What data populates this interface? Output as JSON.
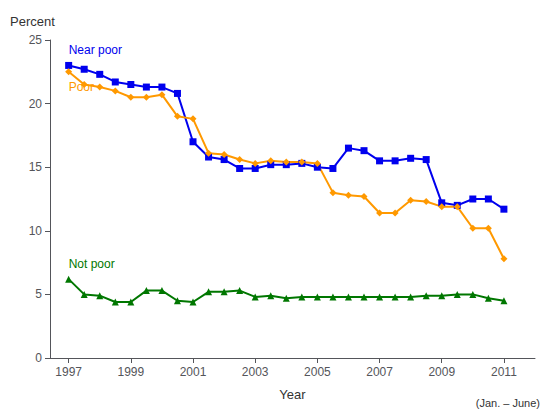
{
  "chart_data": {
    "type": "line",
    "xlabel": "Year",
    "ylabel": "Percent",
    "annotations": [
      "(Jan. – June)"
    ],
    "x": [
      1997,
      1997.5,
      1998,
      1998.5,
      1999,
      1999.5,
      2000,
      2000.5,
      2001,
      2001.5,
      2002,
      2002.5,
      2003,
      2003.5,
      2004,
      2004.5,
      2005,
      2005.5,
      2006,
      2006.5,
      2007,
      2007.5,
      2008,
      2008.5,
      2009,
      2009.5,
      2010,
      2010.5,
      2011
    ],
    "series": [
      {
        "name": "Near poor",
        "color": "#0000ee",
        "marker": "square",
        "values": [
          23.0,
          22.7,
          22.3,
          21.7,
          21.5,
          21.3,
          21.3,
          20.8,
          17.0,
          15.8,
          15.6,
          14.9,
          14.9,
          15.2,
          15.2,
          15.3,
          15.0,
          14.9,
          16.5,
          16.3,
          15.5,
          15.5,
          15.7,
          15.6,
          12.2,
          12.0,
          12.5,
          12.5,
          11.7
        ]
      },
      {
        "name": "Poor",
        "color": "#ff9900",
        "marker": "diamond",
        "values": [
          22.5,
          21.5,
          21.3,
          21.0,
          20.5,
          20.5,
          20.7,
          19.0,
          18.8,
          16.1,
          16.0,
          15.6,
          15.3,
          15.5,
          15.4,
          15.4,
          15.3,
          13.0,
          12.8,
          12.7,
          11.4,
          11.4,
          12.4,
          12.3,
          11.9,
          11.9,
          10.2,
          10.2,
          7.8
        ]
      },
      {
        "name": "Not poor",
        "color": "#007700",
        "marker": "triangle",
        "values": [
          6.2,
          5.0,
          4.9,
          4.4,
          4.4,
          5.3,
          5.3,
          4.5,
          4.4,
          5.2,
          5.2,
          5.3,
          4.8,
          4.9,
          4.7,
          4.8,
          4.8,
          4.8,
          4.8,
          4.8,
          4.8,
          4.8,
          4.8,
          4.9,
          4.9,
          5.0,
          5.0,
          4.7,
          4.5
        ]
      }
    ],
    "xlim": [
      1996.4,
      2012.0
    ],
    "xticks": [
      1997,
      1999,
      2001,
      2003,
      2005,
      2007,
      2009,
      2011
    ],
    "ylim": [
      0,
      25
    ],
    "yticks": [
      0,
      5,
      10,
      15,
      20,
      25
    ],
    "grid": false
  }
}
